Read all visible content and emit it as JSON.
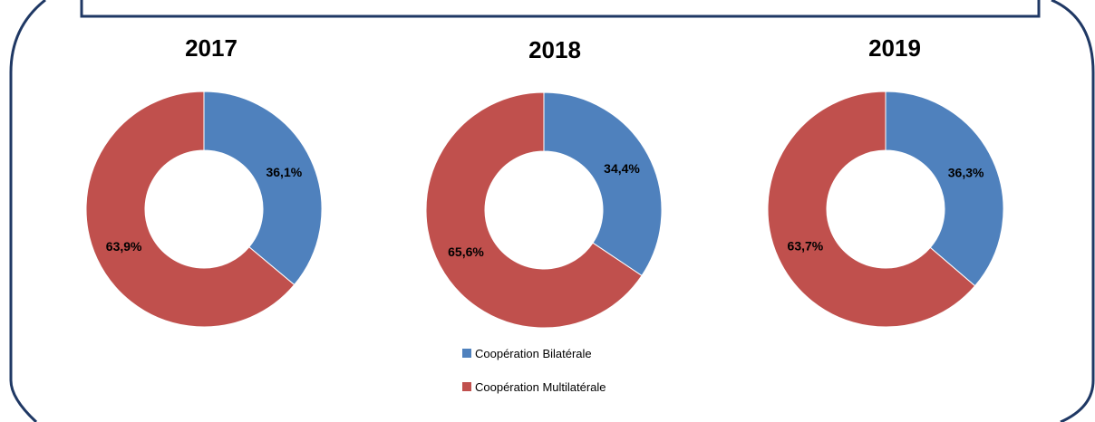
{
  "chart_data": [
    {
      "type": "pie",
      "title": "2017",
      "categories": [
        "Coopération Bilatérale",
        "Coopération Multilatérale"
      ],
      "values": [
        36.1,
        63.9
      ],
      "labels": [
        "36,1%",
        "63,9%"
      ]
    },
    {
      "type": "pie",
      "title": "2018",
      "categories": [
        "Coopération Bilatérale",
        "Coopération Multilatérale"
      ],
      "values": [
        34.4,
        65.6
      ],
      "labels": [
        "34,4%",
        "65,6%"
      ]
    },
    {
      "type": "pie",
      "title": "2019",
      "categories": [
        "Coopération Bilatérale",
        "Coopération Multilatérale"
      ],
      "values": [
        36.3,
        63.7
      ],
      "labels": [
        "36,3%",
        "63,7%"
      ]
    }
  ],
  "legend": {
    "position": "bottom-center",
    "items": [
      {
        "label": "Coopération Bilatérale",
        "color": "#4f81bd"
      },
      {
        "label": "Coopération Multilatérale",
        "color": "#c0504d"
      }
    ]
  },
  "colors": {
    "series": [
      "#4f81bd",
      "#c0504d"
    ],
    "frame": "#1f3864"
  }
}
